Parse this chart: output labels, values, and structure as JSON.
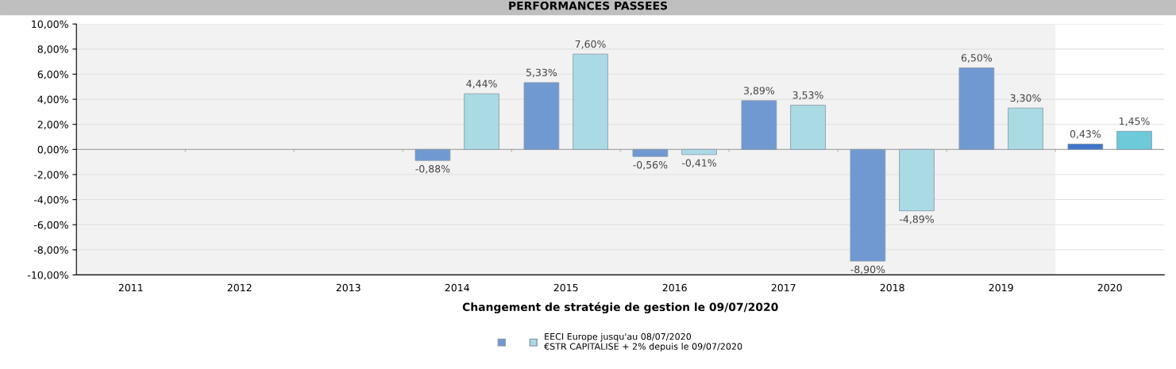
{
  "chart_data": {
    "type": "bar",
    "title": "PERFORMANCES PASSEES",
    "xlabel": "Changement de stratégie de gestion le 09/07/2020",
    "categories": [
      "2011",
      "2012",
      "2013",
      "2014",
      "2015",
      "2016",
      "2017",
      "2018",
      "2019",
      "2020"
    ],
    "series": [
      {
        "color": "#7099d2",
        "colors": [
          "#7099d2",
          "#7099d2",
          "#7099d2",
          "#7099d2",
          "#7099d2",
          "#7099d2",
          "#7099d2",
          "#7099d2",
          "#7099d2",
          "#3f74c9"
        ],
        "values": [
          null,
          null,
          null,
          -0.88,
          5.33,
          -0.56,
          3.89,
          -8.9,
          6.5,
          0.43
        ],
        "value_labels": [
          null,
          null,
          null,
          "-0,88%",
          "5,33%",
          "-0,56%",
          "3,89%",
          "-8,90%",
          "6,50%",
          "0,43%"
        ]
      },
      {
        "name": "EECI Europe jusqu'au 08/07/2020\n€STR CAPITALISE + 2% depuis le 09/07/2020",
        "color": "#aadbe5",
        "colors": [
          "#aadbe5",
          "#aadbe5",
          "#aadbe5",
          "#aadbe5",
          "#aadbe5",
          "#aadbe5",
          "#aadbe5",
          "#aadbe5",
          "#aadbe5",
          "#6ccad9"
        ],
        "values": [
          null,
          null,
          null,
          4.44,
          7.6,
          -0.41,
          3.53,
          -4.89,
          3.3,
          1.45
        ],
        "value_labels": [
          null,
          null,
          null,
          "4,44%",
          "7,60%",
          "-0,41%",
          "3,53%",
          "-4,89%",
          "3,30%",
          "1,45%"
        ]
      }
    ],
    "ylim": [
      -10,
      10
    ],
    "yticks": [
      {
        "value": -10,
        "label": "-10,00%"
      },
      {
        "value": -8,
        "label": "-8,00%"
      },
      {
        "value": -6,
        "label": "-6,00%"
      },
      {
        "value": -4,
        "label": "-4,00%"
      },
      {
        "value": -2,
        "label": "-2,00%"
      },
      {
        "value": 0,
        "label": "0,00%"
      },
      {
        "value": 2,
        "label": "2,00%"
      },
      {
        "value": 4,
        "label": "4,00%"
      },
      {
        "value": 6,
        "label": "6,00%"
      },
      {
        "value": 8,
        "label": "8,00%"
      },
      {
        "value": 10,
        "label": "10,00%"
      }
    ],
    "bands": [
      {
        "axis": "x",
        "from": "2011",
        "to": "2019",
        "color": "#f2f2f2"
      }
    ],
    "grid": "y",
    "legend": "bottom"
  }
}
